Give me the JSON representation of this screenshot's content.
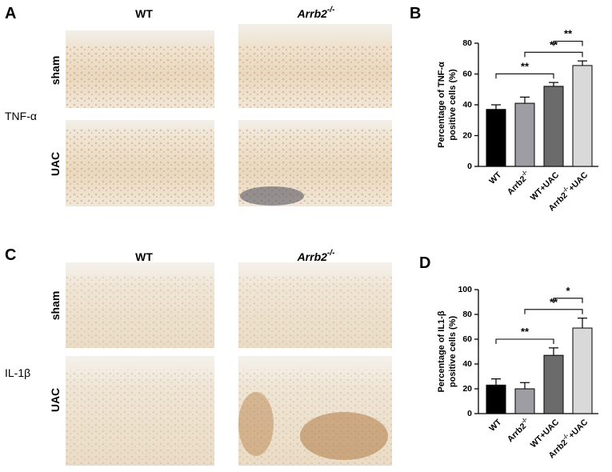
{
  "panel_labels": [
    "A",
    "B",
    "C",
    "D"
  ],
  "figure_rows": [
    {
      "marker": "TNF-α",
      "columns": [
        "WT",
        "Arrb2-/-"
      ],
      "rows": [
        "sham",
        "UAC"
      ]
    },
    {
      "marker": "IL-1β",
      "columns": [
        "WT",
        "Arrb2-/-"
      ],
      "rows": [
        "sham",
        "UAC"
      ]
    }
  ],
  "chart_data": [
    {
      "type": "bar",
      "y_label": [
        "Percentage of TNF-α",
        "positive cells (%)"
      ],
      "categories": [
        "WT",
        "Arrb2-/-",
        "WT+UAC",
        "Arrb2-/-+UAC"
      ],
      "values": [
        37,
        41,
        52,
        65.5
      ],
      "errors": [
        3,
        4,
        2.5,
        3
      ],
      "colors": [
        "#000000",
        "#9d9da3",
        "#6b6b6b",
        "#d9d9d9"
      ],
      "ylim": [
        0,
        80
      ],
      "yticks": [
        0,
        20,
        40,
        60,
        80
      ],
      "comparisons": [
        {
          "groups": [
            "WT",
            "WT+UAC"
          ],
          "label": "**"
        },
        {
          "groups": [
            "Arrb2-/-",
            "Arrb2-/-+UAC"
          ],
          "label": "**"
        },
        {
          "groups": [
            "WT+UAC",
            "Arrb2-/-+UAC"
          ],
          "label": "**"
        }
      ]
    },
    {
      "type": "bar",
      "y_label": [
        "Percentage of IL1-β",
        "positive cells (%)"
      ],
      "categories": [
        "WT",
        "Arrb2-/-",
        "WT+UAC",
        "Arrb2-/-+UAC"
      ],
      "values": [
        23,
        20,
        47,
        69
      ],
      "errors": [
        5,
        5,
        6,
        8
      ],
      "colors": [
        "#000000",
        "#9d9da3",
        "#6b6b6b",
        "#d9d9d9"
      ],
      "ylim": [
        0,
        100
      ],
      "yticks": [
        0,
        20,
        40,
        60,
        80,
        100
      ],
      "comparisons": [
        {
          "groups": [
            "WT",
            "WT+UAC"
          ],
          "label": "**"
        },
        {
          "groups": [
            "Arrb2-/-",
            "Arrb2-/-+UAC"
          ],
          "label": "**"
        },
        {
          "groups": [
            "WT+UAC",
            "Arrb2-/-+UAC"
          ],
          "label": "*"
        }
      ]
    }
  ]
}
